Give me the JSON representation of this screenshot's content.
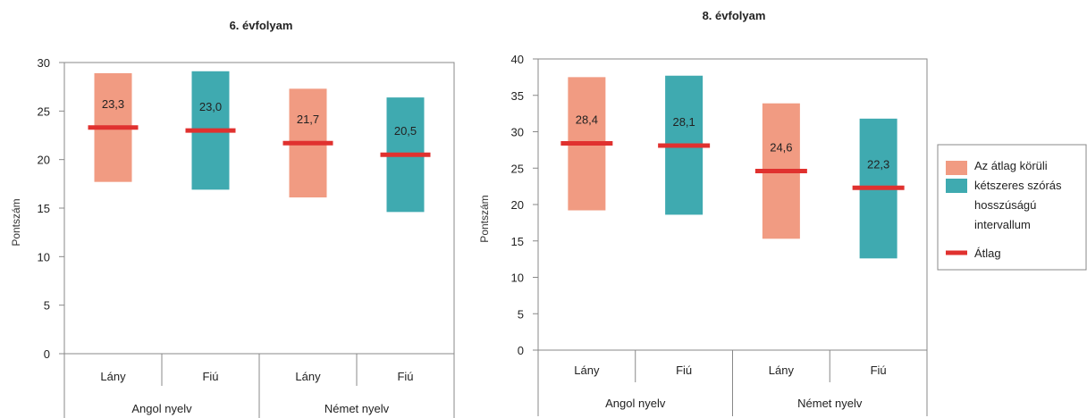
{
  "legend": {
    "interval_lines": [
      "Az átlag körüli",
      "kétszeres szórás",
      "hosszúságú",
      "intervallum"
    ],
    "mean_label": "Átlag"
  },
  "colors": {
    "girl": "#f19b82",
    "boy": "#3faab0",
    "mean": "#e0312f",
    "frame": "#888888"
  },
  "chart_data": [
    {
      "type": "bar",
      "subtype": "floating-range-with-mean",
      "title": "6. évfolyam",
      "ylabel": "Pontszám",
      "ylim": [
        0,
        30
      ],
      "yticks": [
        0,
        5,
        10,
        15,
        20,
        25,
        30
      ],
      "categories": [
        "Lány",
        "Fiú",
        "Lány",
        "Fiú"
      ],
      "groups": [
        "Angol nyelv",
        "Német nyelv"
      ],
      "series": [
        {
          "category": "Lány",
          "group": "Angol nyelv",
          "low": 17.7,
          "high": 28.9,
          "mean": 23.3,
          "label": "23,3"
        },
        {
          "category": "Fiú",
          "group": "Angol nyelv",
          "low": 16.9,
          "high": 29.1,
          "mean": 23.0,
          "label": "23,0"
        },
        {
          "category": "Lány",
          "group": "Német nyelv",
          "low": 16.1,
          "high": 27.3,
          "mean": 21.7,
          "label": "21,7"
        },
        {
          "category": "Fiú",
          "group": "Német nyelv",
          "low": 14.6,
          "high": 26.4,
          "mean": 20.5,
          "label": "20,5"
        }
      ]
    },
    {
      "type": "bar",
      "subtype": "floating-range-with-mean",
      "title": "8. évfolyam",
      "ylabel": "Pontszám",
      "ylim": [
        0,
        40
      ],
      "yticks": [
        0,
        5,
        10,
        15,
        20,
        25,
        30,
        35,
        40
      ],
      "categories": [
        "Lány",
        "Fiú",
        "Lány",
        "Fiú"
      ],
      "groups": [
        "Angol nyelv",
        "Német nyelv"
      ],
      "series": [
        {
          "category": "Lány",
          "group": "Angol nyelv",
          "low": 19.2,
          "high": 37.5,
          "mean": 28.4,
          "label": "28,4"
        },
        {
          "category": "Fiú",
          "group": "Angol nyelv",
          "low": 18.6,
          "high": 37.7,
          "mean": 28.1,
          "label": "28,1"
        },
        {
          "category": "Lány",
          "group": "Német nyelv",
          "low": 15.3,
          "high": 33.9,
          "mean": 24.6,
          "label": "24,6"
        },
        {
          "category": "Fiú",
          "group": "Német nyelv",
          "low": 12.6,
          "high": 31.8,
          "mean": 22.3,
          "label": "22,3"
        }
      ]
    }
  ]
}
